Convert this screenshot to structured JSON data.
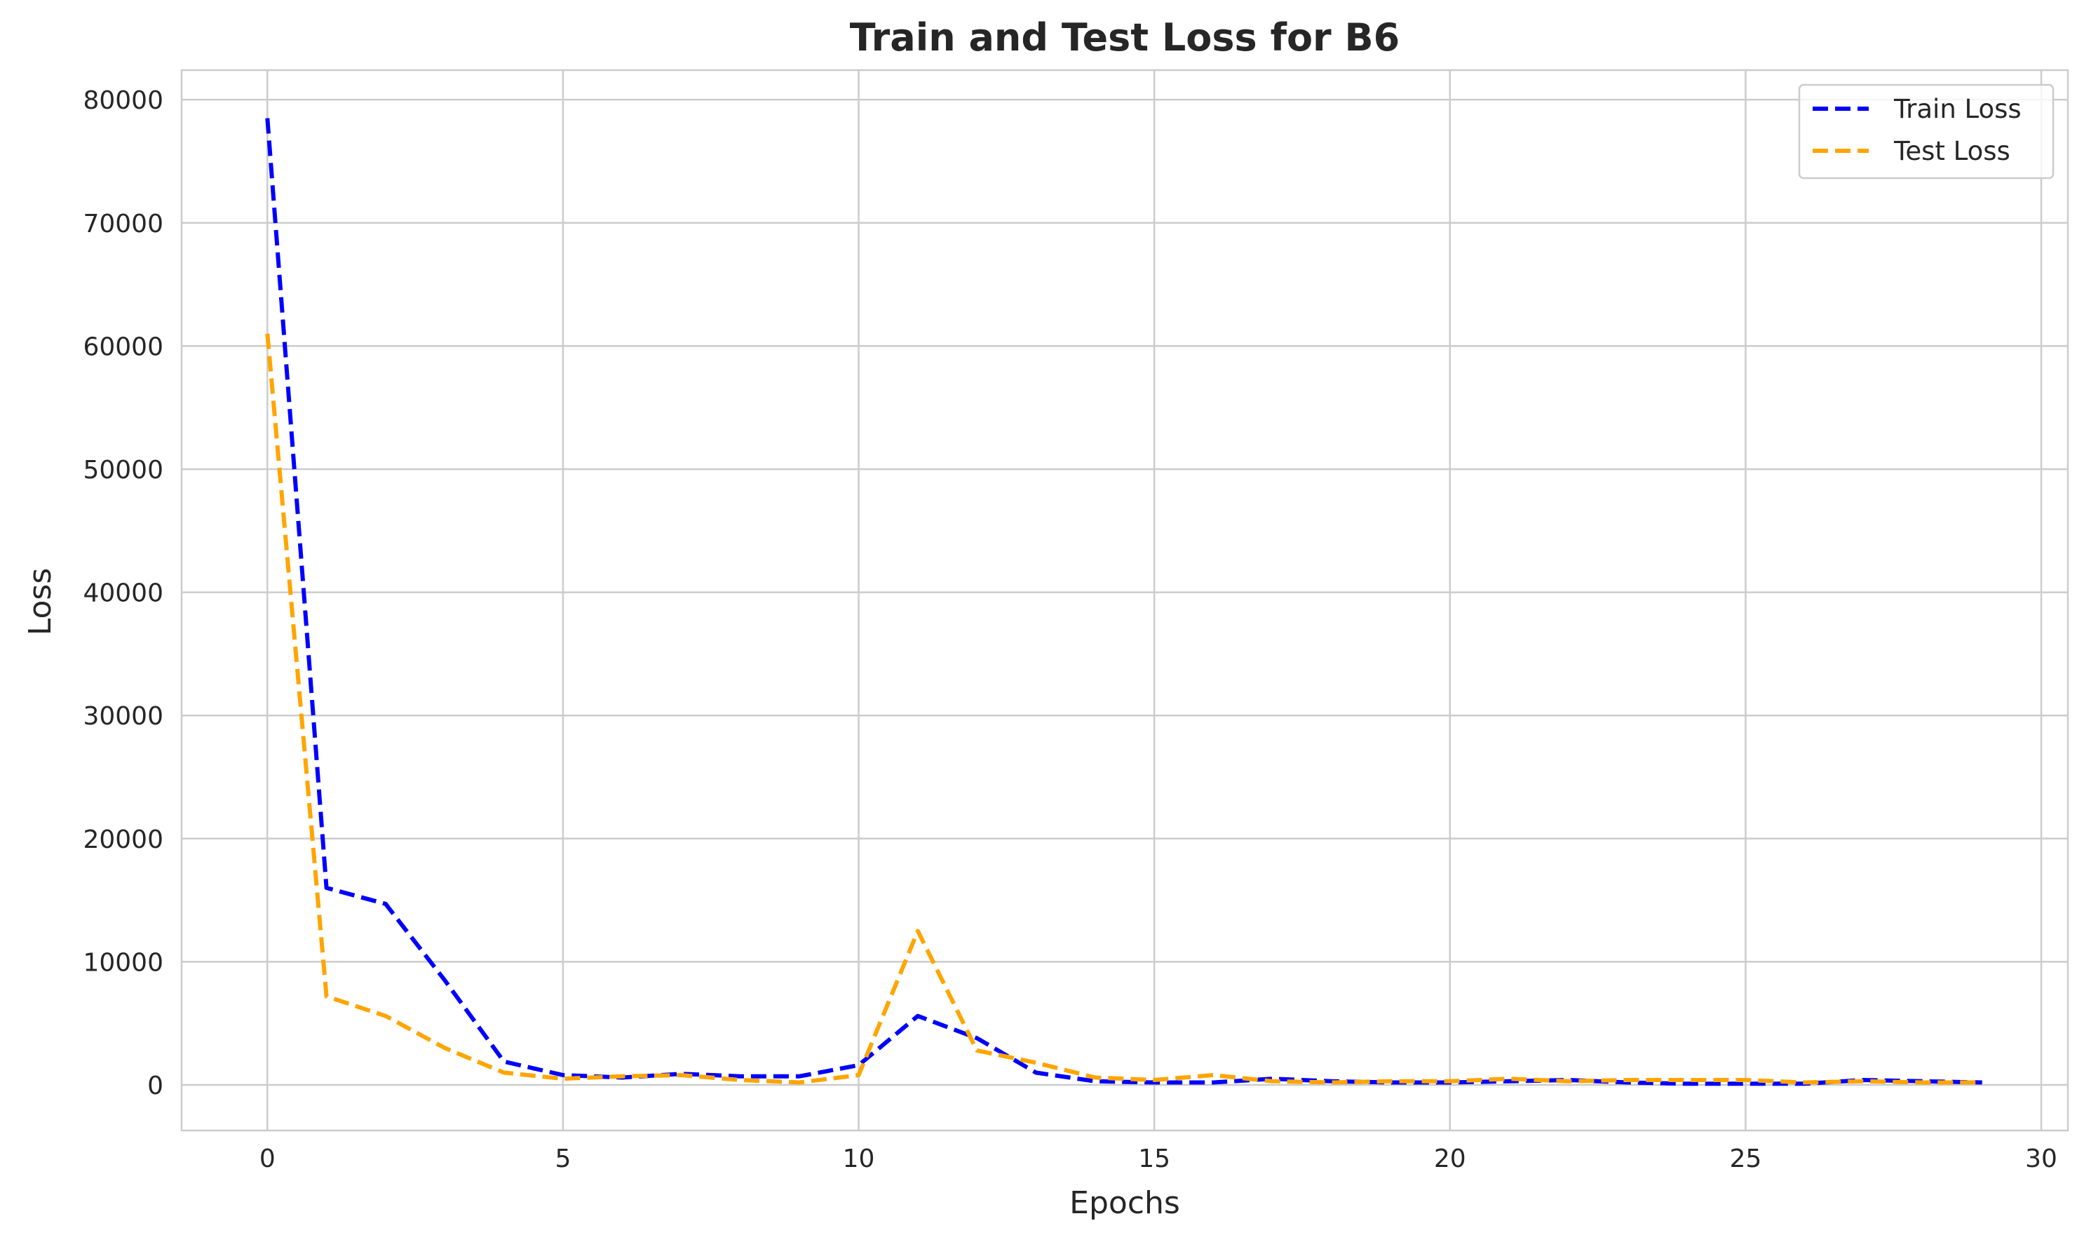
{
  "chart_data": {
    "type": "line",
    "title": "Train and Test Loss for B6",
    "xlabel": "Epochs",
    "ylabel": "Loss",
    "xlim": [
      -1.45,
      30.45
    ],
    "ylim": [
      -3700,
      82400
    ],
    "xticks": [
      0,
      5,
      10,
      15,
      20,
      25,
      30
    ],
    "yticks": [
      0,
      10000,
      20000,
      30000,
      40000,
      50000,
      60000,
      70000,
      80000
    ],
    "grid": true,
    "legend_position": "top-right",
    "x": [
      0,
      1,
      2,
      3,
      4,
      5,
      6,
      7,
      8,
      9,
      10,
      11,
      12,
      13,
      14,
      15,
      16,
      17,
      18,
      19,
      20,
      21,
      22,
      23,
      24,
      25,
      26,
      27,
      28,
      29
    ],
    "series": [
      {
        "name": "Train Loss",
        "color": "#0000ff",
        "values": [
          78500,
          16000,
          14700,
          8500,
          1900,
          800,
          600,
          900,
          700,
          700,
          1600,
          5600,
          3800,
          1000,
          300,
          200,
          200,
          500,
          300,
          200,
          200,
          300,
          400,
          200,
          100,
          100,
          100,
          400,
          300,
          200
        ]
      },
      {
        "name": "Test Loss",
        "color": "#ffa500",
        "values": [
          61000,
          7200,
          5600,
          3000,
          1000,
          500,
          700,
          800,
          400,
          200,
          800,
          12500,
          2800,
          1800,
          600,
          400,
          800,
          300,
          200,
          300,
          300,
          500,
          300,
          400,
          400,
          400,
          200,
          300,
          200,
          200
        ]
      }
    ]
  }
}
